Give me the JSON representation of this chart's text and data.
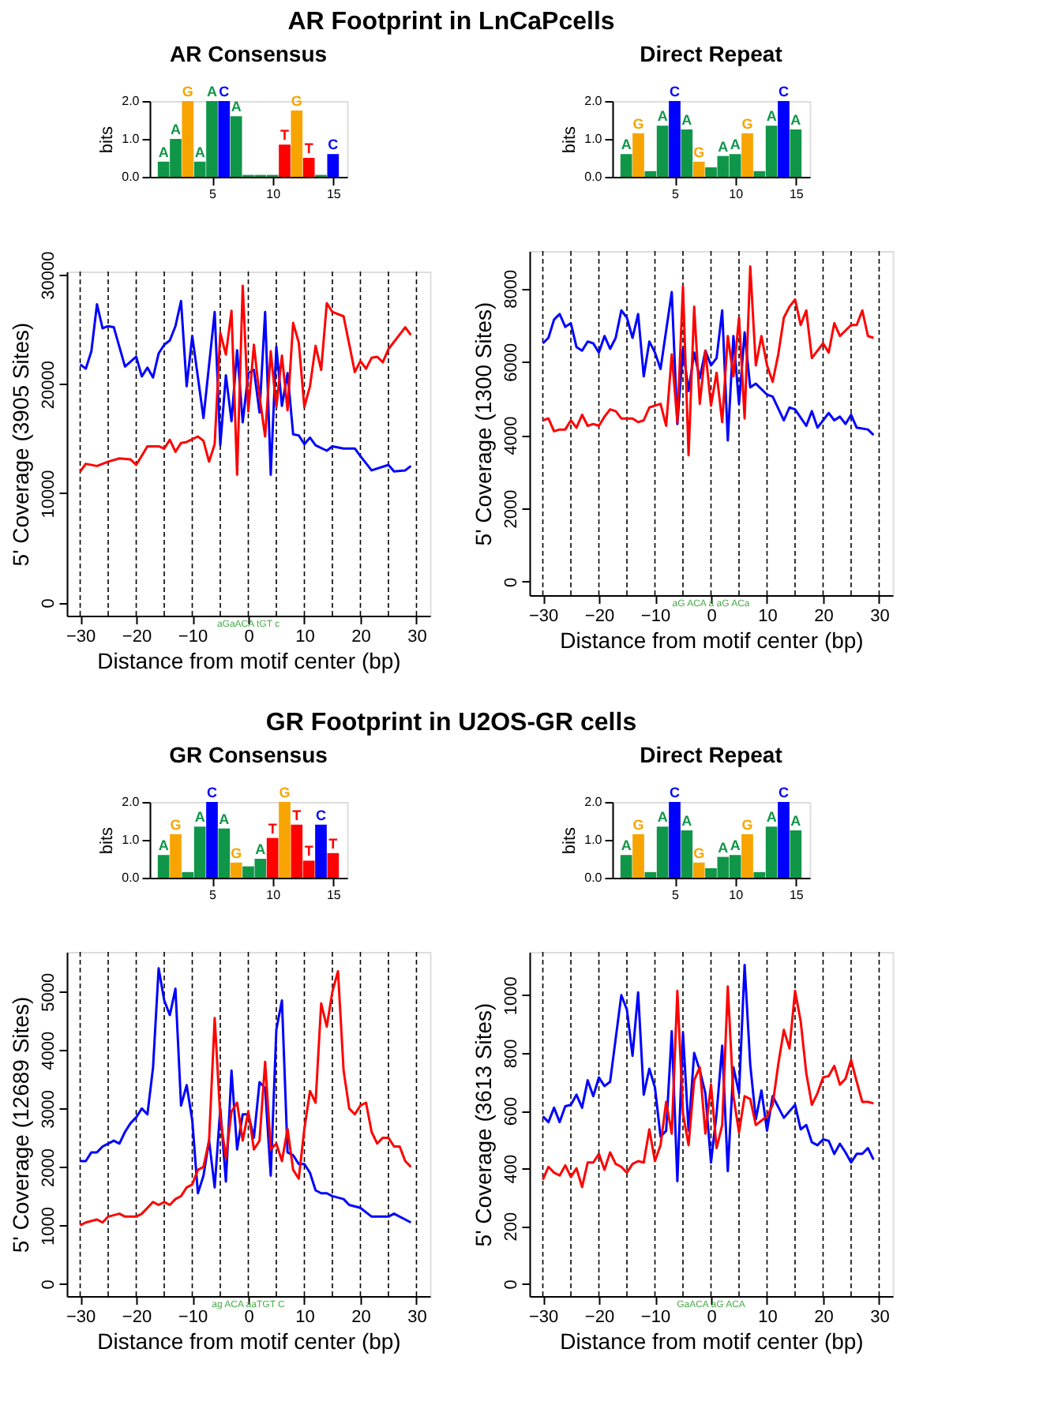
{
  "chart_data": [
    {
      "type": "bar",
      "title": "AR Consensus",
      "ylabel": "bits",
      "annotations": [
        "AR Footprint in LnCaPcells"
      ],
      "x": [
        1,
        2,
        3,
        4,
        5,
        6,
        7,
        8,
        9,
        10,
        11,
        12,
        13,
        14,
        15
      ],
      "values": [
        0.4,
        1.0,
        2.0,
        0.4,
        2.0,
        2.0,
        1.6,
        0.05,
        0.05,
        0.05,
        0.85,
        1.75,
        0.5,
        0.05,
        0.6
      ],
      "colors": [
        "#109648",
        "#109648",
        "#f7a400",
        "#109648",
        "#109648",
        "#0000ff",
        "#109648",
        "#109648",
        "#109648",
        "#109648",
        "#ff0000",
        "#f7a400",
        "#ff0000",
        "#109648",
        "#0000ff"
      ],
      "value_labels": [
        "A",
        "A",
        "G",
        "A",
        "A",
        "C",
        "A",
        null,
        null,
        null,
        "T",
        "G",
        "T",
        null,
        "C"
      ],
      "xlim": [
        0.5,
        15.5
      ],
      "xticks": [
        5,
        10,
        15
      ],
      "ylim": [
        0,
        2
      ],
      "yticks": [
        {
          "value": 0,
          "label": "0.0"
        },
        {
          "value": 1,
          "label": "1.0"
        },
        {
          "value": 2,
          "label": "2.0"
        }
      ]
    },
    {
      "type": "line",
      "xlabel": "Distance from motif center (bp)",
      "ylabel": "5' Coverage (3905 Sites)",
      "xlim": [
        -32.4,
        32.4
      ],
      "xticks": [
        -30,
        -20,
        -10,
        0,
        10,
        20,
        30
      ],
      "ylim": [
        -1200,
        30300
      ],
      "yticks": [
        0,
        10000,
        20000,
        30000
      ],
      "annotations": [
        "aGaACA   tGT c"
      ],
      "series": [
        {
          "color": "#0000ff",
          "x": [
            -30,
            -29,
            -28,
            -27,
            -26,
            -25,
            -24,
            -22,
            -20,
            -19,
            -18,
            -17,
            -16,
            -15,
            -14,
            -13,
            -12,
            -11,
            -10,
            -8,
            -6,
            -5,
            -4,
            -3,
            -2,
            -1,
            0,
            1,
            2,
            3,
            4,
            5,
            6,
            7,
            8,
            9,
            10,
            11,
            12,
            14,
            15,
            17,
            19,
            20,
            22,
            25,
            26,
            28,
            29
          ],
          "values": [
            21800,
            21400,
            23000,
            27300,
            25100,
            25300,
            25200,
            21600,
            22500,
            20700,
            21500,
            20600,
            22800,
            23600,
            24000,
            25300,
            27600,
            19800,
            24400,
            16900,
            26600,
            14400,
            20800,
            16600,
            23100,
            16500,
            21000,
            21300,
            17400,
            26600,
            11700,
            23400,
            18000,
            21000,
            15400,
            15300,
            14500,
            15100,
            14400,
            13900,
            14300,
            14100,
            14100,
            13400,
            12100,
            12600,
            12000,
            12100,
            12500
          ]
        },
        {
          "color": "#ff0000",
          "x": [
            -30,
            -29,
            -27,
            -25,
            -23,
            -21,
            -20,
            -18,
            -16,
            -15,
            -14,
            -13,
            -12,
            -11,
            -9,
            -8,
            -7,
            -6,
            -5,
            -4,
            -3,
            -2,
            -1,
            0,
            1,
            2,
            3,
            4,
            5,
            6,
            7,
            8,
            9,
            10,
            11,
            12,
            13,
            14,
            15,
            17,
            19,
            20,
            21,
            22,
            23,
            24,
            25,
            28,
            29
          ],
          "values": [
            12000,
            12700,
            12500,
            12900,
            13200,
            13100,
            12600,
            14300,
            14300,
            14100,
            14900,
            13800,
            14600,
            14700,
            15200,
            14800,
            12900,
            14500,
            24700,
            22700,
            26700,
            11700,
            29000,
            17500,
            23600,
            18900,
            15200,
            23000,
            17900,
            22600,
            17600,
            25600,
            23800,
            17900,
            19800,
            23500,
            21300,
            27400,
            26600,
            26200,
            21100,
            22100,
            21400,
            22400,
            22500,
            22000,
            23200,
            25200,
            24500
          ]
        }
      ],
      "ref_lines": [
        {
          "axis": "x",
          "value": -30,
          "line_style": "dashed",
          "color": "#000000"
        },
        {
          "axis": "x",
          "value": -25,
          "line_style": "dashed",
          "color": "#000000"
        },
        {
          "axis": "x",
          "value": -20,
          "line_style": "dashed",
          "color": "#000000"
        },
        {
          "axis": "x",
          "value": -15,
          "line_style": "dashed",
          "color": "#000000"
        },
        {
          "axis": "x",
          "value": -10,
          "line_style": "dashed",
          "color": "#000000"
        },
        {
          "axis": "x",
          "value": -5,
          "line_style": "dashed",
          "color": "#000000"
        },
        {
          "axis": "x",
          "value": 0,
          "line_style": "dashed",
          "color": "#000000"
        },
        {
          "axis": "x",
          "value": 5,
          "line_style": "dashed",
          "color": "#000000"
        },
        {
          "axis": "x",
          "value": 10,
          "line_style": "dashed",
          "color": "#000000"
        },
        {
          "axis": "x",
          "value": 15,
          "line_style": "dashed",
          "color": "#000000"
        },
        {
          "axis": "x",
          "value": 20,
          "line_style": "dashed",
          "color": "#000000"
        },
        {
          "axis": "x",
          "value": 25,
          "line_style": "dashed",
          "color": "#000000"
        },
        {
          "axis": "x",
          "value": 30,
          "line_style": "dashed",
          "color": "#000000"
        }
      ]
    },
    {
      "type": "bar",
      "title": "Direct Repeat",
      "ylabel": "bits",
      "x": [
        1,
        2,
        3,
        4,
        5,
        6,
        7,
        8,
        9,
        10,
        11,
        12,
        13,
        14,
        15
      ],
      "values": [
        0.6,
        1.15,
        0.15,
        1.35,
        2.0,
        1.25,
        0.4,
        0.25,
        0.55,
        0.6,
        1.15,
        0.15,
        1.35,
        2.0,
        1.25
      ],
      "colors": [
        "#109648",
        "#f7a400",
        "#109648",
        "#109648",
        "#0000ff",
        "#109648",
        "#f7a400",
        "#109648",
        "#109648",
        "#109648",
        "#f7a400",
        "#109648",
        "#109648",
        "#0000ff",
        "#109648"
      ],
      "value_labels": [
        "A",
        "G",
        null,
        "A",
        "C",
        "A",
        "G",
        null,
        "A",
        "A",
        "G",
        null,
        "A",
        "C",
        "A"
      ],
      "xlim": [
        0.5,
        15.5
      ],
      "xticks": [
        5,
        10,
        15
      ],
      "ylim": [
        0,
        2
      ],
      "yticks": [
        {
          "value": 0,
          "label": "0.0"
        },
        {
          "value": 1,
          "label": "1.0"
        },
        {
          "value": 2,
          "label": "2.0"
        }
      ]
    },
    {
      "type": "line",
      "xlabel": "Distance from motif center (bp)",
      "ylabel": "5' Coverage (1300 Sites)",
      "xlim": [
        -32.4,
        32.4
      ],
      "xticks": [
        -30,
        -20,
        -10,
        0,
        10,
        20,
        30
      ],
      "ylim": [
        -370,
        9020
      ],
      "yticks": [
        0,
        2000,
        4000,
        6000,
        8000
      ],
      "annotations": [
        "aG  ACA  a  aG  ACa"
      ],
      "series": [
        {
          "color": "#0000ff",
          "x": [
            -30,
            -29,
            -28,
            -27,
            -26,
            -25,
            -24,
            -23,
            -22,
            -21,
            -20,
            -19,
            -18,
            -17,
            -16,
            -15,
            -14,
            -13,
            -12,
            -11,
            -10,
            -9,
            -7,
            -6,
            -5,
            -4,
            -3,
            -2,
            -1,
            0,
            1,
            2,
            3,
            4,
            5,
            6,
            7,
            8,
            10,
            11,
            13,
            14,
            15,
            17,
            18,
            19,
            21,
            22,
            23,
            24,
            25,
            26,
            28,
            29
          ],
          "values": [
            6500,
            6650,
            7150,
            7300,
            6950,
            7050,
            6400,
            6300,
            6550,
            6500,
            6250,
            6700,
            6350,
            6650,
            7400,
            7200,
            6650,
            7300,
            5600,
            6550,
            6250,
            5800,
            7900,
            4300,
            6350,
            5200,
            6250,
            5550,
            6300,
            5900,
            6100,
            7400,
            3850,
            6700,
            4850,
            6800,
            5300,
            5400,
            5100,
            5050,
            4400,
            4750,
            4700,
            4250,
            4650,
            4200,
            4600,
            4400,
            4500,
            4300,
            4550,
            4200,
            4150,
            4000
          ]
        },
        {
          "color": "#ff0000",
          "x": [
            -30,
            -29,
            -28,
            -27,
            -26,
            -25,
            -24,
            -23,
            -22,
            -21,
            -20,
            -19,
            -18,
            -17,
            -16,
            -14,
            -13,
            -12,
            -11,
            -10,
            -9,
            -8,
            -7,
            -6,
            -5,
            -4,
            -3,
            -2,
            -1,
            0,
            1,
            2,
            3,
            4,
            5,
            6,
            7,
            8,
            9,
            10,
            11,
            12,
            13,
            14,
            15,
            16,
            17,
            18,
            20,
            21,
            22,
            23,
            25,
            26,
            27,
            28,
            29
          ],
          "values": [
            4400,
            4450,
            4100,
            4150,
            4150,
            4400,
            4200,
            4550,
            4250,
            4300,
            4250,
            4500,
            4700,
            4650,
            4450,
            4450,
            4350,
            4400,
            4750,
            4800,
            4850,
            4250,
            6200,
            4350,
            8050,
            3450,
            7500,
            4850,
            6300,
            4800,
            5700,
            4350,
            6700,
            5600,
            7200,
            4450,
            8600,
            5900,
            6700,
            5900,
            5450,
            6200,
            7200,
            7500,
            7700,
            7000,
            7400,
            6100,
            6500,
            6250,
            7050,
            6700,
            7000,
            7000,
            7400,
            6700,
            6650
          ]
        }
      ],
      "ref_lines": [
        {
          "axis": "x",
          "value": -30,
          "line_style": "dashed",
          "color": "#000000"
        },
        {
          "axis": "x",
          "value": -25,
          "line_style": "dashed",
          "color": "#000000"
        },
        {
          "axis": "x",
          "value": -20,
          "line_style": "dashed",
          "color": "#000000"
        },
        {
          "axis": "x",
          "value": -15,
          "line_style": "dashed",
          "color": "#000000"
        },
        {
          "axis": "x",
          "value": -10,
          "line_style": "dashed",
          "color": "#000000"
        },
        {
          "axis": "x",
          "value": -5,
          "line_style": "dashed",
          "color": "#000000"
        },
        {
          "axis": "x",
          "value": 0,
          "line_style": "dashed",
          "color": "#000000"
        },
        {
          "axis": "x",
          "value": 5,
          "line_style": "dashed",
          "color": "#000000"
        },
        {
          "axis": "x",
          "value": 10,
          "line_style": "dashed",
          "color": "#000000"
        },
        {
          "axis": "x",
          "value": 15,
          "line_style": "dashed",
          "color": "#000000"
        },
        {
          "axis": "x",
          "value": 20,
          "line_style": "dashed",
          "color": "#000000"
        },
        {
          "axis": "x",
          "value": 25,
          "line_style": "dashed",
          "color": "#000000"
        },
        {
          "axis": "x",
          "value": 30,
          "line_style": "dashed",
          "color": "#000000"
        }
      ]
    },
    {
      "type": "bar",
      "title": "GR Consensus",
      "ylabel": "bits",
      "annotations": [
        "GR Footprint in U2OS-GR cells"
      ],
      "x": [
        1,
        2,
        3,
        4,
        5,
        6,
        7,
        8,
        9,
        10,
        11,
        12,
        13,
        14,
        15
      ],
      "values": [
        0.6,
        1.15,
        0.15,
        1.35,
        2.0,
        1.3,
        0.4,
        0.3,
        0.5,
        1.05,
        2.0,
        1.4,
        0.45,
        1.4,
        0.65
      ],
      "colors": [
        "#109648",
        "#f7a400",
        "#109648",
        "#109648",
        "#0000ff",
        "#109648",
        "#f7a400",
        "#109648",
        "#109648",
        "#ff0000",
        "#f7a400",
        "#ff0000",
        "#ff0000",
        "#0000ff",
        "#ff0000"
      ],
      "value_labels": [
        "A",
        "G",
        null,
        "A",
        "C",
        "A",
        "G",
        null,
        "A",
        "T",
        "G",
        "T",
        "T",
        "C",
        "T"
      ],
      "xlim": [
        0.5,
        15.5
      ],
      "xticks": [
        5,
        10,
        15
      ],
      "ylim": [
        0,
        2
      ],
      "yticks": [
        {
          "value": 0,
          "label": "0.0"
        },
        {
          "value": 1,
          "label": "1.0"
        },
        {
          "value": 2,
          "label": "2.0"
        }
      ]
    },
    {
      "type": "line",
      "xlabel": "Distance from motif center (bp)",
      "ylabel": "5' Coverage (12689 Sites)",
      "xlim": [
        -32.4,
        32.4
      ],
      "xticks": [
        -30,
        -20,
        -10,
        0,
        10,
        20,
        30
      ],
      "ylim": [
        -210,
        5680
      ],
      "yticks": [
        0,
        1000,
        2000,
        3000,
        4000,
        5000
      ],
      "annotations": [
        "ag  ACA  aaTGT  C"
      ],
      "series": [
        {
          "color": "#0000ff",
          "x": [
            -30,
            -29,
            -28,
            -27,
            -26,
            -25,
            -24,
            -23,
            -22,
            -21,
            -20,
            -19,
            -18,
            -17,
            -16,
            -15,
            -14,
            -13,
            -12,
            -11,
            -10,
            -9,
            -8,
            -7,
            -6,
            -5,
            -4,
            -3,
            -2,
            -1,
            0,
            1,
            2,
            3,
            4,
            5,
            6,
            7,
            8,
            9,
            10,
            11,
            12,
            13,
            14,
            15,
            17,
            18,
            20,
            22,
            25,
            26,
            28,
            29
          ],
          "values": [
            2100,
            2100,
            2250,
            2250,
            2350,
            2400,
            2450,
            2400,
            2600,
            2750,
            2850,
            3000,
            2900,
            3700,
            5400,
            4850,
            4600,
            5050,
            3050,
            3400,
            2800,
            1550,
            1850,
            2450,
            1650,
            3000,
            1750,
            3650,
            2300,
            2900,
            2900,
            2500,
            3450,
            3350,
            1850,
            4350,
            4850,
            2250,
            2200,
            2050,
            2050,
            1900,
            1600,
            1550,
            1550,
            1500,
            1450,
            1350,
            1300,
            1150,
            1150,
            1200,
            1100,
            1050
          ]
        },
        {
          "color": "#ff0000",
          "x": [
            -30,
            -29,
            -27,
            -26,
            -25,
            -23,
            -22,
            -20,
            -19,
            -18,
            -17,
            -16,
            -15,
            -14,
            -13,
            -12,
            -11,
            -10,
            -9,
            -8,
            -7,
            -6,
            -5,
            -4,
            -3,
            -2,
            -1,
            0,
            1,
            2,
            3,
            4,
            5,
            6,
            7,
            8,
            9,
            10,
            11,
            12,
            13,
            14,
            15,
            16,
            17,
            18,
            19,
            20,
            21,
            22,
            23,
            24,
            25,
            26,
            27,
            28,
            29
          ],
          "values": [
            1000,
            1050,
            1100,
            1050,
            1150,
            1200,
            1150,
            1150,
            1200,
            1300,
            1400,
            1350,
            1400,
            1350,
            1450,
            1500,
            1650,
            1700,
            1950,
            2000,
            2450,
            4550,
            2850,
            2150,
            2950,
            3100,
            2450,
            2950,
            2300,
            2450,
            3800,
            2300,
            2400,
            2100,
            2650,
            1950,
            1800,
            2650,
            3300,
            3100,
            4800,
            4400,
            5000,
            5350,
            3650,
            3000,
            2900,
            3050,
            3100,
            2600,
            2400,
            2500,
            2500,
            2350,
            2350,
            2100,
            2000
          ]
        }
      ],
      "ref_lines": [
        {
          "axis": "x",
          "value": -30,
          "line_style": "dashed",
          "color": "#000000"
        },
        {
          "axis": "x",
          "value": -25,
          "line_style": "dashed",
          "color": "#000000"
        },
        {
          "axis": "x",
          "value": -20,
          "line_style": "dashed",
          "color": "#000000"
        },
        {
          "axis": "x",
          "value": -15,
          "line_style": "dashed",
          "color": "#000000"
        },
        {
          "axis": "x",
          "value": -10,
          "line_style": "dashed",
          "color": "#000000"
        },
        {
          "axis": "x",
          "value": -5,
          "line_style": "dashed",
          "color": "#000000"
        },
        {
          "axis": "x",
          "value": 0,
          "line_style": "dashed",
          "color": "#000000"
        },
        {
          "axis": "x",
          "value": 5,
          "line_style": "dashed",
          "color": "#000000"
        },
        {
          "axis": "x",
          "value": 10,
          "line_style": "dashed",
          "color": "#000000"
        },
        {
          "axis": "x",
          "value": 15,
          "line_style": "dashed",
          "color": "#000000"
        },
        {
          "axis": "x",
          "value": 20,
          "line_style": "dashed",
          "color": "#000000"
        },
        {
          "axis": "x",
          "value": 25,
          "line_style": "dashed",
          "color": "#000000"
        },
        {
          "axis": "x",
          "value": 30,
          "line_style": "dashed",
          "color": "#000000"
        }
      ]
    },
    {
      "type": "bar",
      "title": "Direct Repeat",
      "ylabel": "bits",
      "x": [
        1,
        2,
        3,
        4,
        5,
        6,
        7,
        8,
        9,
        10,
        11,
        12,
        13,
        14,
        15
      ],
      "values": [
        0.6,
        1.15,
        0.15,
        1.35,
        2.0,
        1.25,
        0.4,
        0.25,
        0.55,
        0.6,
        1.15,
        0.15,
        1.35,
        2.0,
        1.25
      ],
      "colors": [
        "#109648",
        "#f7a400",
        "#109648",
        "#109648",
        "#0000ff",
        "#109648",
        "#f7a400",
        "#109648",
        "#109648",
        "#109648",
        "#f7a400",
        "#109648",
        "#109648",
        "#0000ff",
        "#109648"
      ],
      "value_labels": [
        "A",
        "G",
        null,
        "A",
        "C",
        "A",
        "G",
        null,
        "A",
        "A",
        "G",
        null,
        "A",
        "C",
        "A"
      ],
      "xlim": [
        0.5,
        15.5
      ],
      "xticks": [
        5,
        10,
        15
      ],
      "ylim": [
        0,
        2
      ],
      "yticks": [
        {
          "value": 0,
          "label": "0.0"
        },
        {
          "value": 1,
          "label": "1.0"
        },
        {
          "value": 2,
          "label": "2.0"
        }
      ]
    },
    {
      "type": "line",
      "xlabel": "Distance from motif center (bp)",
      "ylabel": "5' Coverage (3613 Sites)",
      "xlim": [
        -32.4,
        32.4
      ],
      "xticks": [
        -30,
        -20,
        -10,
        0,
        10,
        20,
        30
      ],
      "ylim": [
        -43,
        1150
      ],
      "yticks": [
        0,
        200,
        400,
        600,
        800,
        1000
      ],
      "annotations": [
        "GaACA     aG  ACA"
      ],
      "series": [
        {
          "color": "#0000ff",
          "x": [
            -30,
            -29,
            -28,
            -27,
            -26,
            -25,
            -24,
            -23,
            -22,
            -21,
            -20,
            -19,
            -18,
            -17,
            -16,
            -15,
            -14,
            -13,
            -12,
            -11,
            -10,
            -9,
            -8,
            -7,
            -6,
            -5,
            -4,
            -3,
            -2,
            -1,
            0,
            1,
            2,
            3,
            4,
            5,
            6,
            7,
            8,
            9,
            10,
            11,
            13,
            15,
            16,
            17,
            18,
            19,
            20,
            21,
            22,
            23,
            24,
            25,
            26,
            27,
            28,
            29
          ],
          "values": [
            580,
            560,
            610,
            560,
            615,
            620,
            655,
            610,
            705,
            650,
            715,
            685,
            700,
            850,
            1000,
            950,
            790,
            1010,
            655,
            745,
            680,
            510,
            530,
            875,
            355,
            870,
            530,
            800,
            740,
            660,
            420,
            590,
            825,
            390,
            750,
            660,
            1105,
            760,
            570,
            670,
            530,
            650,
            575,
            620,
            535,
            550,
            490,
            480,
            500,
            495,
            450,
            485,
            455,
            420,
            450,
            450,
            470,
            430
          ]
        },
        {
          "color": "#ff0000",
          "x": [
            -30,
            -29,
            -28,
            -27,
            -26,
            -25,
            -24,
            -23,
            -22,
            -21,
            -20,
            -19,
            -18,
            -17,
            -16,
            -15,
            -14,
            -13,
            -12,
            -11,
            -10,
            -9,
            -8,
            -7,
            -6,
            -5,
            -4,
            -3,
            -2,
            -1,
            0,
            1,
            2,
            3,
            4,
            5,
            6,
            7,
            8,
            9,
            10,
            11,
            12,
            13,
            14,
            15,
            16,
            17,
            18,
            19,
            20,
            21,
            22,
            23,
            24,
            25,
            26,
            27,
            28,
            29
          ],
          "values": [
            360,
            405,
            385,
            375,
            410,
            370,
            400,
            335,
            420,
            420,
            450,
            395,
            455,
            415,
            405,
            385,
            415,
            425,
            420,
            535,
            425,
            480,
            630,
            520,
            1015,
            590,
            480,
            705,
            750,
            520,
            690,
            470,
            550,
            1030,
            650,
            525,
            650,
            640,
            550,
            565,
            580,
            620,
            760,
            880,
            815,
            1015,
            910,
            730,
            620,
            660,
            715,
            720,
            755,
            690,
            710,
            775,
            700,
            630,
            630,
            625
          ]
        }
      ],
      "ref_lines": [
        {
          "axis": "x",
          "value": -30,
          "line_style": "dashed",
          "color": "#000000"
        },
        {
          "axis": "x",
          "value": -25,
          "line_style": "dashed",
          "color": "#000000"
        },
        {
          "axis": "x",
          "value": -20,
          "line_style": "dashed",
          "color": "#000000"
        },
        {
          "axis": "x",
          "value": -15,
          "line_style": "dashed",
          "color": "#000000"
        },
        {
          "axis": "x",
          "value": -10,
          "line_style": "dashed",
          "color": "#000000"
        },
        {
          "axis": "x",
          "value": -5,
          "line_style": "dashed",
          "color": "#000000"
        },
        {
          "axis": "x",
          "value": 0,
          "line_style": "dashed",
          "color": "#000000"
        },
        {
          "axis": "x",
          "value": 5,
          "line_style": "dashed",
          "color": "#000000"
        },
        {
          "axis": "x",
          "value": 10,
          "line_style": "dashed",
          "color": "#000000"
        },
        {
          "axis": "x",
          "value": 15,
          "line_style": "dashed",
          "color": "#000000"
        },
        {
          "axis": "x",
          "value": 20,
          "line_style": "dashed",
          "color": "#000000"
        },
        {
          "axis": "x",
          "value": 25,
          "line_style": "dashed",
          "color": "#000000"
        },
        {
          "axis": "x",
          "value": 30,
          "line_style": "dashed",
          "color": "#000000"
        }
      ]
    }
  ]
}
